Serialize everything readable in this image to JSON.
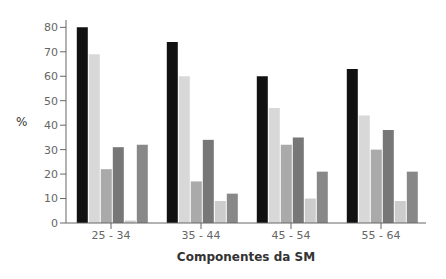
{
  "chart_data": {
    "type": "bar",
    "categories": [
      "25 - 34",
      "35 - 44",
      "45 - 54",
      "55 - 64"
    ],
    "series": [
      {
        "color": "#111111",
        "values": [
          80,
          74,
          60,
          63
        ]
      },
      {
        "color": "#d8d8d8",
        "values": [
          69,
          60,
          47,
          44
        ]
      },
      {
        "color": "#aaaaaa",
        "values": [
          22,
          17,
          32,
          30
        ]
      },
      {
        "color": "#777777",
        "values": [
          31,
          34,
          35,
          38
        ]
      },
      {
        "color": "#cccccc",
        "values": [
          1,
          9,
          10,
          9
        ]
      },
      {
        "color": "#888888",
        "values": [
          32,
          12,
          21,
          21
        ]
      }
    ],
    "xlabel": "Componentes da SM",
    "ylabel": "%",
    "ylim": [
      0,
      83
    ],
    "yticks": [
      0,
      10,
      20,
      30,
      40,
      50,
      60,
      70,
      80
    ],
    "grid": false
  }
}
